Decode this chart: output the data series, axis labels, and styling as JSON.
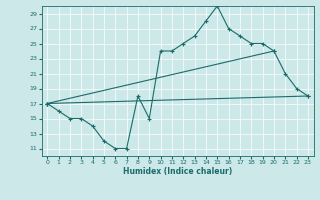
{
  "xlabel": "Humidex (Indice chaleur)",
  "bg_color": "#cce8e8",
  "line_color": "#1a6b6b",
  "grid_color": "#ffffff",
  "xlim": [
    -0.5,
    23.5
  ],
  "ylim": [
    10,
    30
  ],
  "yticks": [
    11,
    13,
    15,
    17,
    19,
    21,
    23,
    25,
    27,
    29
  ],
  "xticks": [
    0,
    1,
    2,
    3,
    4,
    5,
    6,
    7,
    8,
    9,
    10,
    11,
    12,
    13,
    14,
    15,
    16,
    17,
    18,
    19,
    20,
    21,
    22,
    23
  ],
  "series1": {
    "x": [
      0,
      1,
      2,
      3,
      4,
      5,
      6,
      7,
      8,
      9,
      10,
      11,
      12,
      13,
      14,
      15,
      16,
      17,
      18,
      19,
      20,
      21,
      22,
      23
    ],
    "y": [
      17,
      16,
      15,
      15,
      14,
      12,
      11,
      11,
      18,
      15,
      24,
      24,
      25,
      26,
      28,
      30,
      27,
      26,
      25,
      25,
      24,
      21,
      19,
      18
    ]
  },
  "series2": {
    "x": [
      0,
      23
    ],
    "y": [
      17,
      18
    ]
  },
  "series3": {
    "x": [
      0,
      20
    ],
    "y": [
      17,
      24
    ]
  }
}
